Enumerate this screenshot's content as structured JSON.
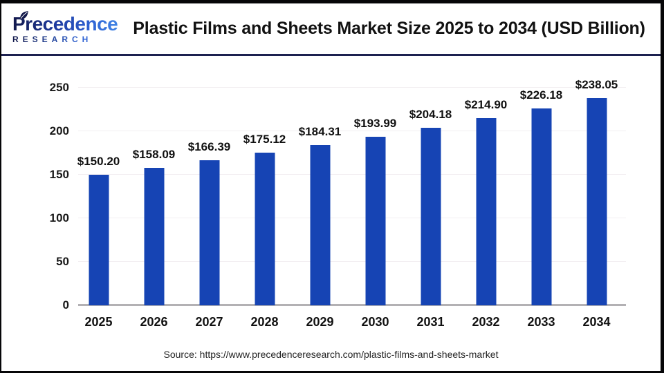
{
  "brand": {
    "name": "Precedence",
    "sub": "RESEARCH"
  },
  "header": {
    "title": "Plastic Films and Sheets Market Size 2025 to 2034 (USD Billion)"
  },
  "chart_data": {
    "type": "bar",
    "title": "Plastic Films and Sheets Market Size 2025 to 2034 (USD Billion)",
    "categories": [
      "2025",
      "2026",
      "2027",
      "2028",
      "2029",
      "2030",
      "2031",
      "2032",
      "2033",
      "2034"
    ],
    "values": [
      150.2,
      158.09,
      166.39,
      175.12,
      184.31,
      193.99,
      204.18,
      214.9,
      226.18,
      238.05
    ],
    "value_labels": [
      "$150.20",
      "$158.09",
      "$166.39",
      "$175.12",
      "$184.31",
      "$193.99",
      "$204.18",
      "$214.90",
      "$226.18",
      "$238.05"
    ],
    "xlabel": "",
    "ylabel": "",
    "ylim": [
      0,
      250
    ],
    "yticks": [
      0,
      50,
      100,
      150,
      200,
      250
    ],
    "grid": true,
    "legend": "none",
    "bar_color": "#1644b4"
  },
  "footer": {
    "source": "Source: https://www.precedenceresearch.com/plastic-films-and-sheets-market"
  },
  "colors": {
    "bar": "#1644b4",
    "divider": "#1d2150",
    "frame": "#060608",
    "gridline": "#f2eef1",
    "axis_line": "#b3b1b4",
    "title_text": "#121212",
    "logo_dark": "#13194b",
    "logo_light": "#3f83e4"
  }
}
